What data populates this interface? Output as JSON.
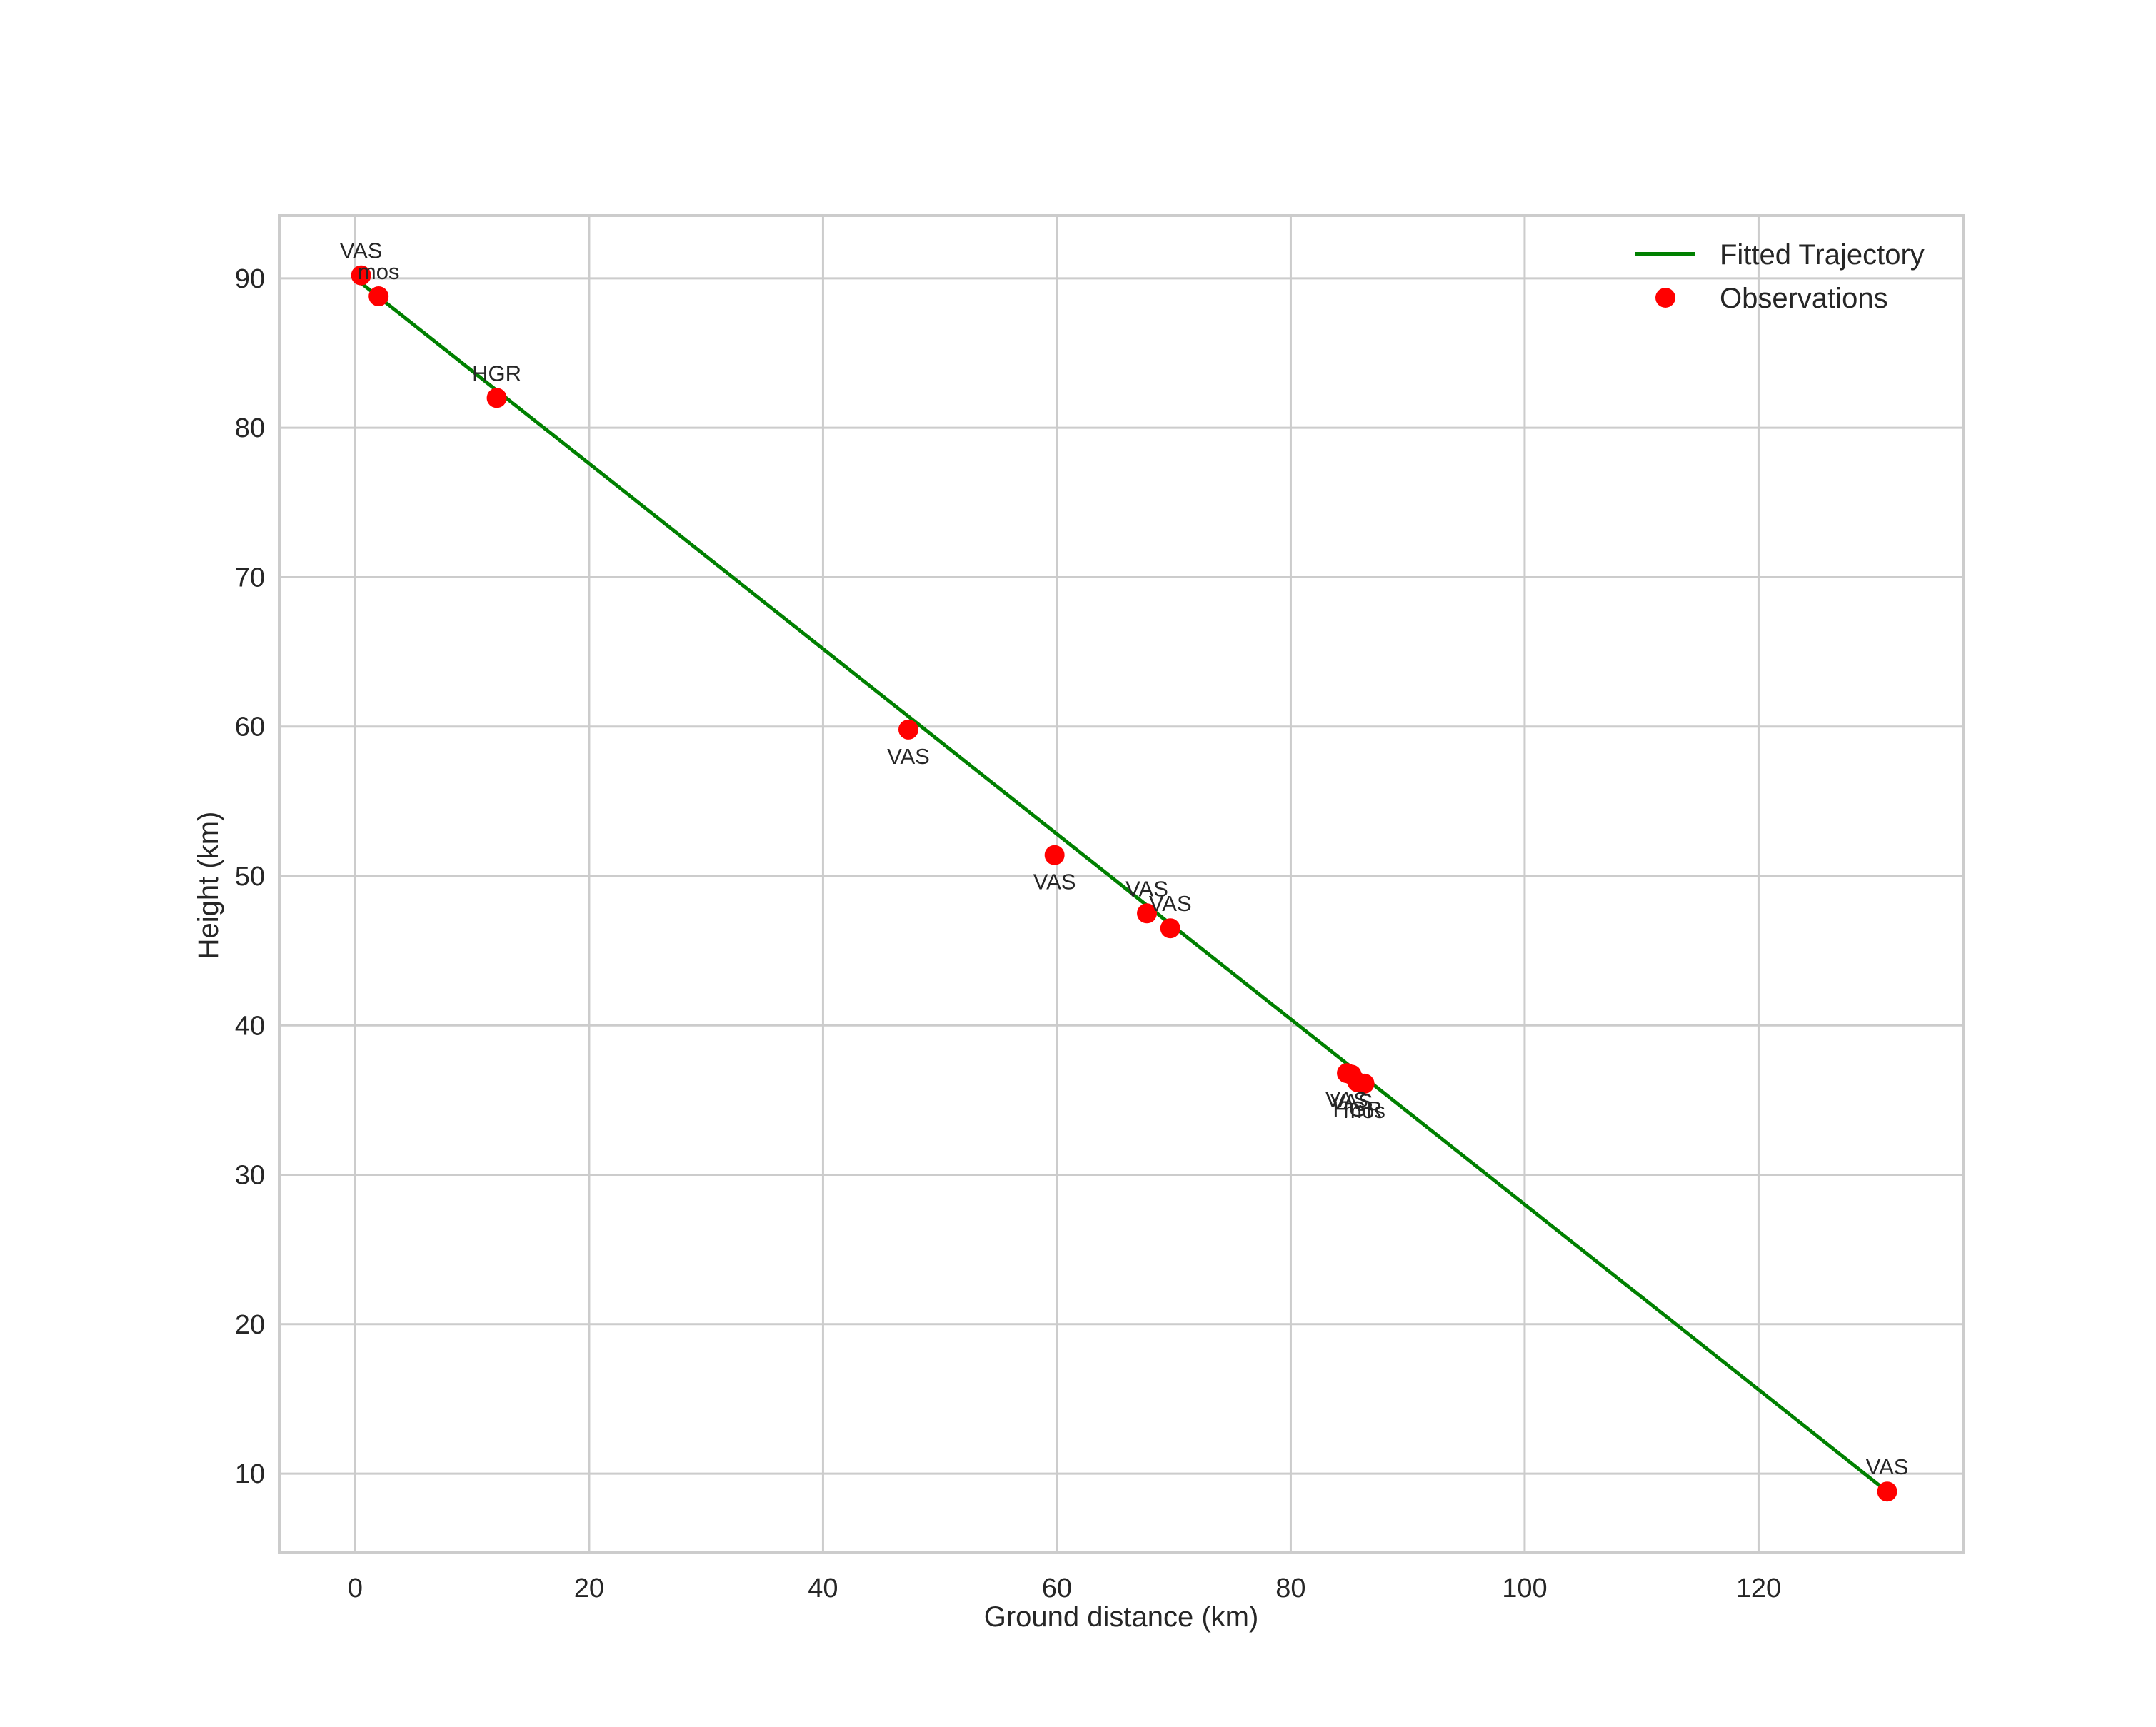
{
  "chart_data": {
    "type": "scatter",
    "title": "",
    "xlabel": "Ground distance (km)",
    "ylabel": "Height (km)",
    "xlim": [
      -6.5,
      137.5
    ],
    "ylim": [
      4.7,
      94.2
    ],
    "xticks": [
      0,
      20,
      40,
      60,
      80,
      100,
      120
    ],
    "yticks": [
      10,
      20,
      30,
      40,
      50,
      60,
      70,
      80,
      90
    ],
    "grid": true,
    "legend_position": "upper right",
    "series": [
      {
        "name": "Fitted Trajectory",
        "kind": "line",
        "color": "#008000",
        "x": [
          0.0,
          131.0
        ],
        "y": [
          90.0,
          8.8
        ]
      },
      {
        "name": "Observations",
        "kind": "scatter",
        "color": "#ff0000",
        "points": [
          {
            "x": 0.5,
            "y": 90.2,
            "label": "VAS",
            "label_pos": "above"
          },
          {
            "x": 2.0,
            "y": 88.8,
            "label": "mos",
            "label_pos": "above"
          },
          {
            "x": 12.1,
            "y": 82.0,
            "label": "HGR",
            "label_pos": "above"
          },
          {
            "x": 47.3,
            "y": 59.8,
            "label": "VAS",
            "label_pos": "below"
          },
          {
            "x": 59.8,
            "y": 51.4,
            "label": "VAS",
            "label_pos": "below"
          },
          {
            "x": 67.7,
            "y": 47.5,
            "label": "VAS",
            "label_pos": "above"
          },
          {
            "x": 69.7,
            "y": 46.5,
            "label": "VAS",
            "label_pos": "above"
          },
          {
            "x": 84.8,
            "y": 36.8,
            "label": "VAS",
            "label_pos": "below"
          },
          {
            "x": 85.2,
            "y": 36.7,
            "label": "VAS",
            "label_pos": "below"
          },
          {
            "x": 85.7,
            "y": 36.2,
            "label": "HGR",
            "label_pos": "below"
          },
          {
            "x": 86.3,
            "y": 36.1,
            "label": "mos",
            "label_pos": "below"
          },
          {
            "x": 131.0,
            "y": 8.8,
            "label": "VAS",
            "label_pos": "above"
          }
        ]
      }
    ]
  },
  "legend": {
    "items": [
      {
        "label": "Fitted Trajectory",
        "type": "line",
        "color": "#008000"
      },
      {
        "label": "Observations",
        "type": "marker",
        "color": "#ff0000"
      }
    ]
  },
  "axes": {
    "xlabel": "Ground distance (km)",
    "ylabel": "Height (km)"
  }
}
